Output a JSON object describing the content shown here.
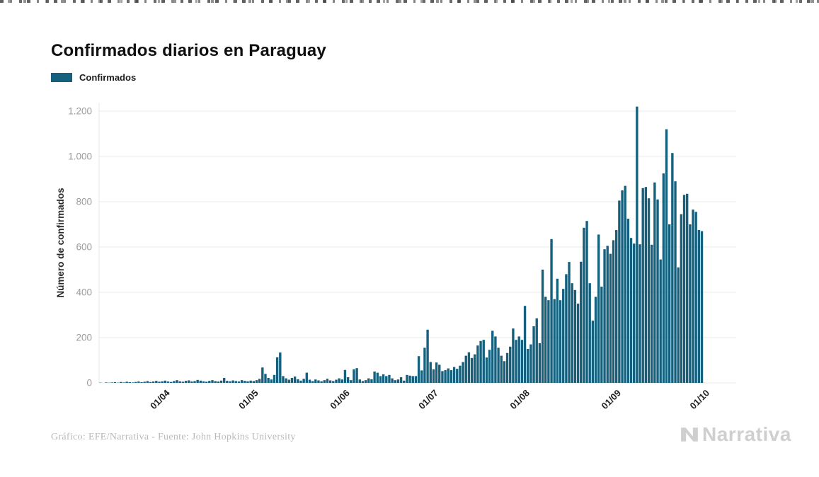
{
  "page": {
    "title": "Confirmados diarios en Paraguay"
  },
  "legend": {
    "items": [
      {
        "label": "Confirmados",
        "color": "#15607d"
      }
    ]
  },
  "footer": {
    "credit": "Gráfico: EFE/Narrativa - Fuente: John Hopkins University"
  },
  "watermark": {
    "text": "Narrativa"
  },
  "chart_data": {
    "type": "bar",
    "title": "Confirmados diarios en Paraguay",
    "xlabel": "",
    "ylabel": "Número de confirmados",
    "ylim": [
      0,
      1300
    ],
    "grid": true,
    "legend_position": "top-left",
    "bar_color": "#15607d",
    "axis_color": "#e9e9e9",
    "ytick_color": "#9b9b9b",
    "xtick_color": "#1f1f1f",
    "yticks": [
      {
        "value": 0,
        "label": "0"
      },
      {
        "value": 200,
        "label": "200"
      },
      {
        "value": 400,
        "label": "400"
      },
      {
        "value": 600,
        "label": "600"
      },
      {
        "value": 800,
        "label": "800"
      },
      {
        "value": 1000,
        "label": "1.000"
      },
      {
        "value": 1200,
        "label": "1.200"
      }
    ],
    "xticks": [
      {
        "label": "01/04",
        "day": 22
      },
      {
        "label": "01/05",
        "day": 52
      },
      {
        "label": "01/06",
        "day": 83
      },
      {
        "label": "01/07",
        "day": 113
      },
      {
        "label": "01/08",
        "day": 144
      },
      {
        "label": "01/09",
        "day": 175
      },
      {
        "label": "01/10",
        "day": 205
      }
    ],
    "series": [
      {
        "name": "Confirmados",
        "values": [
          1,
          0,
          2,
          1,
          2,
          3,
          1,
          4,
          2,
          5,
          3,
          2,
          4,
          6,
          3,
          5,
          8,
          4,
          6,
          9,
          5,
          7,
          10,
          6,
          4,
          8,
          12,
          7,
          5,
          9,
          11,
          6,
          8,
          13,
          10,
          7,
          5,
          9,
          12,
          8,
          6,
          10,
          22,
          9,
          7,
          11,
          8,
          6,
          12,
          9,
          7,
          10,
          8,
          12,
          18,
          68,
          40,
          22,
          15,
          35,
          113,
          134,
          30,
          20,
          14,
          22,
          28,
          16,
          10,
          18,
          45,
          14,
          8,
          15,
          11,
          7,
          12,
          18,
          11,
          8,
          14,
          20,
          15,
          57,
          25,
          12,
          60,
          65,
          15,
          8,
          12,
          20,
          16,
          50,
          45,
          30,
          38,
          30,
          35,
          20,
          12,
          15,
          25,
          10,
          35,
          32,
          30,
          30,
          118,
          55,
          155,
          235,
          92,
          60,
          90,
          80,
          52,
          56,
          64,
          56,
          70,
          62,
          76,
          92,
          120,
          135,
          110,
          126,
          165,
          185,
          190,
          112,
          146,
          230,
          205,
          155,
          120,
          96,
          132,
          160,
          240,
          190,
          205,
          190,
          340,
          150,
          170,
          250,
          285,
          175,
          500,
          380,
          365,
          635,
          370,
          460,
          365,
          415,
          480,
          534,
          440,
          410,
          350,
          535,
          685,
          715,
          440,
          275,
          380,
          655,
          425,
          590,
          605,
          570,
          630,
          675,
          805,
          850,
          870,
          725,
          640,
          615,
          1220,
          612,
          860,
          865,
          815,
          610,
          885,
          810,
          545,
          925,
          1120,
          700,
          1015,
          890,
          510,
          745,
          830,
          835,
          700,
          765,
          755,
          675,
          670
        ]
      }
    ]
  }
}
